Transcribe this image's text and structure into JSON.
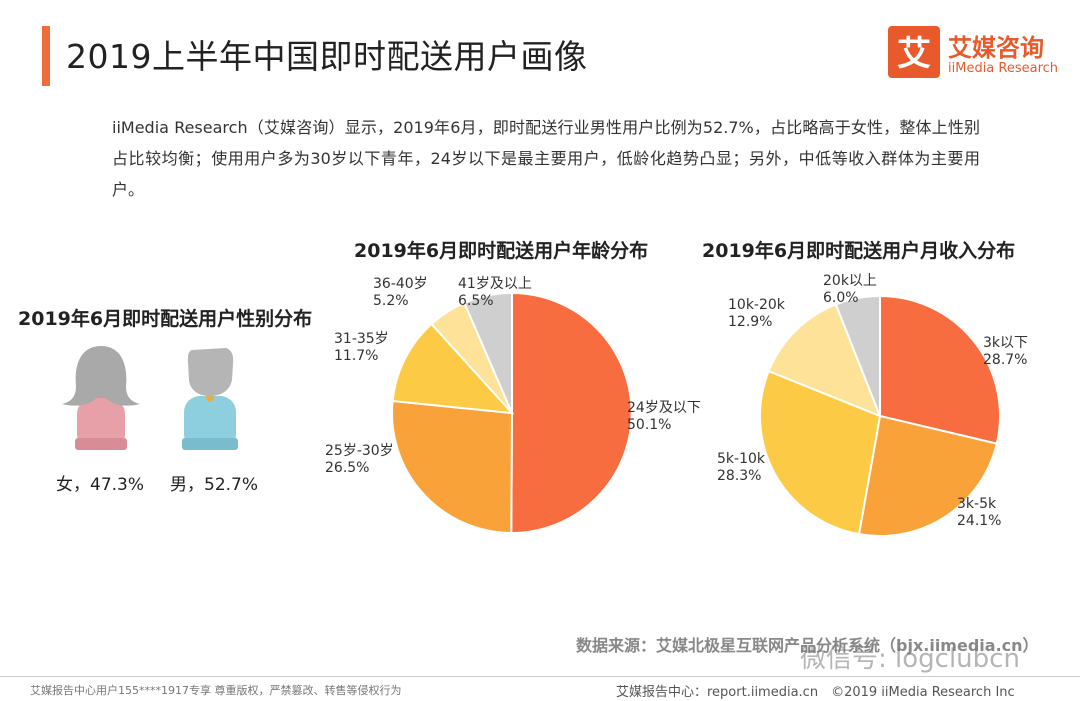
{
  "page": {
    "title": "2019上半年中国即时配送用户画像",
    "intro": "iiMedia Research（艾媒咨询）显示，2019年6月，即时配送行业男性用户比例为52.7%，占比略高于女性，整体上性别占比较均衡；使用用户多为30岁以下青年，24岁以下是最主要用户，低龄化趋势凸显；另外，中低等收入群体为主要用户。",
    "logo_cn": "艾媒咨询",
    "logo_en": "iiMedia Research",
    "logo_mark": "艾",
    "source": "数据来源：艾媒北极星互联网产品分析系统（bjx.iimedia.cn）",
    "watermark": "微信号: logclubcn",
    "footer_left": "艾媒报告中心用户155****1917专享 尊重版权，严禁篡改、转售等侵权行为",
    "footer_right": "艾媒报告中心：report.iimedia.cn　©2019  iiMedia Research  Inc"
  },
  "colors": {
    "accent": "#f26b3a",
    "female_head": "#a9a9a9",
    "female_body": "#e8a0a8",
    "male_head": "#b5b5b5",
    "male_body": "#8ecfdf"
  },
  "gender": {
    "title": "2019年6月即时配送用户性别分布",
    "female_label": "女，47.3%",
    "male_label": "男，52.7%"
  },
  "chart_data": [
    {
      "type": "pie",
      "title": "2019年6月即时配送用户年龄分布",
      "slices": [
        {
          "label": "24岁及以下",
          "value": 50.1,
          "color": "#f76d3f"
        },
        {
          "label": "25岁-30岁",
          "value": 26.5,
          "color": "#f9a23a"
        },
        {
          "label": "31-35岁",
          "value": 11.7,
          "color": "#fcca45"
        },
        {
          "label": "36-40岁",
          "value": 5.2,
          "color": "#fde298"
        },
        {
          "label": "41岁及以上",
          "value": 6.5,
          "color": "#d0cfcf"
        }
      ]
    },
    {
      "type": "pie",
      "title": "2019年6月即时配送用户月收入分布",
      "slices": [
        {
          "label": "3k以下",
          "value": 28.7,
          "color": "#f76d3f"
        },
        {
          "label": "3k-5k",
          "value": 24.1,
          "color": "#f9a23a"
        },
        {
          "label": "5k-10k",
          "value": 28.3,
          "color": "#fcca45"
        },
        {
          "label": "10k-20k",
          "value": 12.9,
          "color": "#fde298"
        },
        {
          "label": "20k以上",
          "value": 6.0,
          "color": "#d0cfcf"
        }
      ]
    }
  ]
}
